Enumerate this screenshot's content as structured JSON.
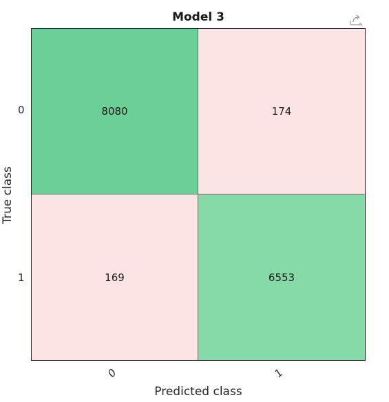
{
  "chart_data": {
    "type": "heatmap",
    "title": "Model 3",
    "xlabel": "Predicted class",
    "ylabel": "True class",
    "x_ticks": [
      "0",
      "1"
    ],
    "y_ticks": [
      "0",
      "1"
    ],
    "cells": [
      {
        "row": 0,
        "col": 0,
        "value": "8080",
        "color": "#6ccf97"
      },
      {
        "row": 0,
        "col": 1,
        "value": "174",
        "color": "#fde4e4"
      },
      {
        "row": 1,
        "col": 0,
        "value": "169",
        "color": "#fde4e4"
      },
      {
        "row": 1,
        "col": 1,
        "value": "6553",
        "color": "#85daa8"
      }
    ]
  },
  "toolbar": {
    "export_icon": "export-icon"
  }
}
